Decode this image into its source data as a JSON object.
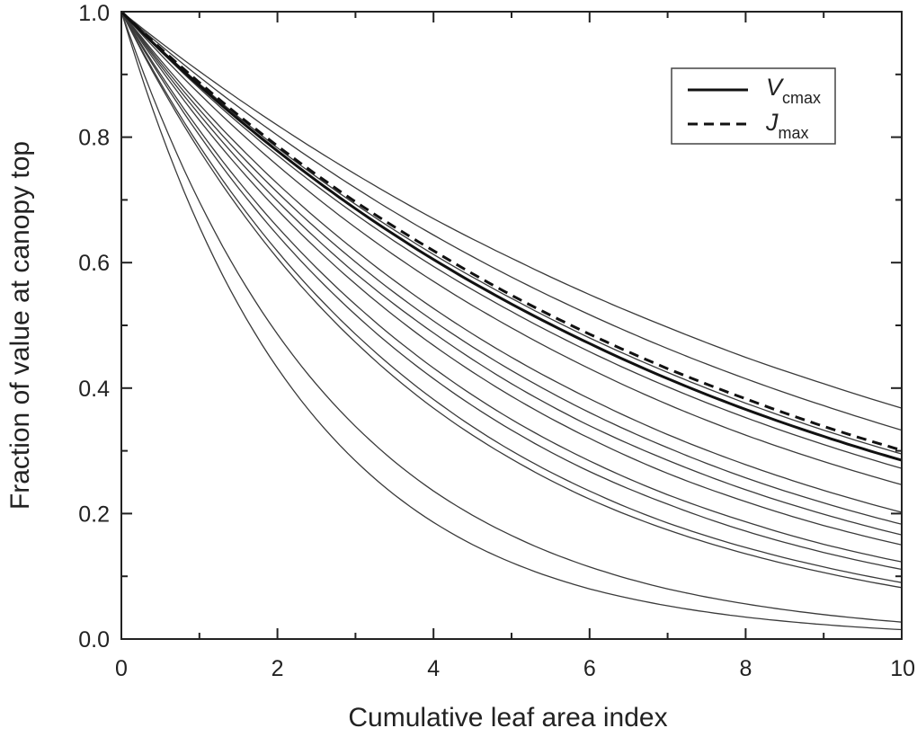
{
  "chart_data": {
    "type": "line",
    "title": "",
    "xlabel": "Cumulative leaf area index",
    "ylabel": "Fraction of value at canopy top",
    "xlim": [
      0,
      10
    ],
    "ylim": [
      0,
      1
    ],
    "x_ticks": [
      "0",
      "2",
      "4",
      "6",
      "8",
      "10"
    ],
    "y_ticks": [
      "0.0",
      "0.2",
      "0.4",
      "0.6",
      "0.8",
      "1.0"
    ],
    "grid": false,
    "legend_position": "top-right",
    "legend": [
      {
        "symbol": "V",
        "subscript": "cmax",
        "line": "solid"
      },
      {
        "symbol": "J",
        "subscript": "max",
        "line": "dashed"
      }
    ],
    "x": [
      0,
      1,
      2,
      3,
      4,
      5,
      6,
      7,
      8,
      9,
      10
    ],
    "series": [
      {
        "values": [
          1.0,
          0.905,
          0.819,
          0.741,
          0.67,
          0.607,
          0.549,
          0.497,
          0.449,
          0.407,
          0.368
        ],
        "style": "thin"
      },
      {
        "values": [
          1.0,
          0.896,
          0.803,
          0.719,
          0.644,
          0.577,
          0.517,
          0.463,
          0.415,
          0.372,
          0.333
        ],
        "style": "thin"
      },
      {
        "values": [
          1.0,
          0.885,
          0.783,
          0.693,
          0.613,
          0.543,
          0.48,
          0.425,
          0.376,
          0.333,
          0.295
        ],
        "style": "thin"
      },
      {
        "values": [
          1.0,
          0.878,
          0.771,
          0.677,
          0.594,
          0.522,
          0.458,
          0.402,
          0.353,
          0.31,
          0.272
        ],
        "style": "thin"
      },
      {
        "values": [
          1.0,
          0.869,
          0.755,
          0.656,
          0.57,
          0.496,
          0.431,
          0.374,
          0.325,
          0.283,
          0.246
        ],
        "style": "thin"
      },
      {
        "values": [
          1.0,
          0.852,
          0.726,
          0.619,
          0.527,
          0.449,
          0.383,
          0.326,
          0.278,
          0.237,
          0.202
        ],
        "style": "thin"
      },
      {
        "values": [
          1.0,
          0.844,
          0.712,
          0.601,
          0.507,
          0.428,
          0.361,
          0.305,
          0.257,
          0.217,
          0.183
        ],
        "style": "thin"
      },
      {
        "values": [
          1.0,
          0.836,
          0.698,
          0.583,
          0.488,
          0.407,
          0.34,
          0.285,
          0.238,
          0.199,
          0.166
        ],
        "style": "thin"
      },
      {
        "values": [
          1.0,
          0.827,
          0.684,
          0.566,
          0.468,
          0.387,
          0.32,
          0.264,
          0.219,
          0.181,
          0.15
        ],
        "style": "thin"
      },
      {
        "values": [
          1.0,
          0.811,
          0.657,
          0.533,
          0.432,
          0.35,
          0.284,
          0.23,
          0.187,
          0.151,
          0.123
        ],
        "style": "thin"
      },
      {
        "values": [
          1.0,
          0.803,
          0.644,
          0.517,
          0.415,
          0.333,
          0.267,
          0.215,
          0.172,
          0.138,
          0.111
        ],
        "style": "thin"
      },
      {
        "values": [
          1.0,
          0.786,
          0.618,
          0.486,
          0.382,
          0.3,
          0.236,
          0.185,
          0.146,
          0.115,
          0.09
        ],
        "style": "thin"
      },
      {
        "values": [
          1.0,
          0.779,
          0.607,
          0.473,
          0.368,
          0.287,
          0.223,
          0.174,
          0.136,
          0.106,
          0.082
        ],
        "style": "thin"
      },
      {
        "values": [
          1.0,
          0.697,
          0.486,
          0.339,
          0.236,
          0.165,
          0.115,
          0.08,
          0.056,
          0.039,
          0.027
        ],
        "style": "thin"
      },
      {
        "values": [
          1.0,
          0.657,
          0.432,
          0.284,
          0.186,
          0.122,
          0.08,
          0.053,
          0.035,
          0.023,
          0.015
        ],
        "style": "thin"
      },
      {
        "name": "Vcmax",
        "values": [
          1.0,
          0.882,
          0.778,
          0.686,
          0.605,
          0.534,
          0.471,
          0.415,
          0.366,
          0.323,
          0.285
        ],
        "style": "thick"
      },
      {
        "name": "Jmax",
        "values": [
          1.0,
          0.887,
          0.786,
          0.697,
          0.619,
          0.548,
          0.486,
          0.431,
          0.383,
          0.339,
          0.301
        ],
        "style": "dashed"
      }
    ]
  }
}
